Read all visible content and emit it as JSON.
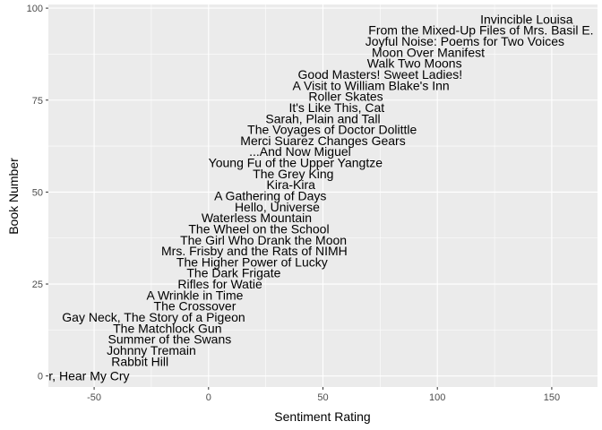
{
  "chart_data": {
    "type": "scatter",
    "xlabel": "Sentiment Rating",
    "ylabel": "Book Number",
    "xlim": [
      -70,
      170
    ],
    "ylim": [
      -3,
      101
    ],
    "x_ticks": [
      -50,
      0,
      50,
      100,
      150
    ],
    "x_tick_labels": [
      "-50",
      "0",
      "50",
      "100",
      "150"
    ],
    "y_ticks": [
      0,
      25,
      50,
      75,
      100
    ],
    "y_tick_labels": [
      "0",
      "25",
      "50",
      "75",
      "100"
    ],
    "grid": true,
    "colors": {
      "panel": "#ebebeb",
      "grid_major": "#ffffff",
      "label": "#000000",
      "tick": "#4d4d4d"
    },
    "points": [
      {
        "label": "Roll of Thunder, Hear My Cry",
        "x": -70,
        "y": 0
      },
      {
        "label": "Rabbit Hill",
        "x": -30,
        "y": 4
      },
      {
        "label": "Johnny Tremain",
        "x": -25,
        "y": 7
      },
      {
        "label": "Summer of the Swans",
        "x": -17,
        "y": 10
      },
      {
        "label": "The Matchlock Gun",
        "x": -18,
        "y": 13
      },
      {
        "label": "Gay Neck, The Story of a Pigeon",
        "x": -24,
        "y": 16
      },
      {
        "label": "The Crossover",
        "x": -6,
        "y": 19
      },
      {
        "label": "A Wrinkle in Time",
        "x": -6,
        "y": 22
      },
      {
        "label": "Rifles for Watie",
        "x": 5,
        "y": 25
      },
      {
        "label": "The Dark Frigate",
        "x": 11,
        "y": 28
      },
      {
        "label": "The Higher Power of Lucky",
        "x": 19,
        "y": 31
      },
      {
        "label": "Mrs. Frisby and the Rats of NIMH",
        "x": 20,
        "y": 34
      },
      {
        "label": "The Girl Who Drank the Moon",
        "x": 24,
        "y": 37
      },
      {
        "label": "The Wheel on the School",
        "x": 22,
        "y": 40
      },
      {
        "label": "Waterless Mountain",
        "x": 21,
        "y": 43
      },
      {
        "label": "Hello, Universe",
        "x": 30,
        "y": 46
      },
      {
        "label": "A Gathering of Days",
        "x": 27,
        "y": 49
      },
      {
        "label": "Kira-Kira",
        "x": 36,
        "y": 52
      },
      {
        "label": "The Grey King",
        "x": 37,
        "y": 55
      },
      {
        "label": "Young Fu of the Upper Yangtze",
        "x": 38,
        "y": 58
      },
      {
        "label": "...And Now Miguel",
        "x": 40,
        "y": 61
      },
      {
        "label": "Merci Suarez Changes Gears",
        "x": 50,
        "y": 64
      },
      {
        "label": "The Voyages of Doctor Dolittle",
        "x": 54,
        "y": 67
      },
      {
        "label": "Sarah, Plain and Tall",
        "x": 50,
        "y": 70
      },
      {
        "label": "It's Like This, Cat",
        "x": 56,
        "y": 73
      },
      {
        "label": "Roller Skates",
        "x": 60,
        "y": 76
      },
      {
        "label": "A Visit to William Blake's Inn",
        "x": 71,
        "y": 79
      },
      {
        "label": "Good Masters! Sweet Ladies!",
        "x": 75,
        "y": 82
      },
      {
        "label": "Walk Two Moons",
        "x": 90,
        "y": 85
      },
      {
        "label": "Moon Over Manifest",
        "x": 96,
        "y": 88
      },
      {
        "label": "Joyful Noise: Poems for Two Voices",
        "x": 112,
        "y": 91
      },
      {
        "label": "From the Mixed-Up Files of Mrs. Basil E. Frankweiler",
        "x": 134,
        "y": 94
      },
      {
        "label": "Invincible Louisa",
        "x": 139,
        "y": 97
      }
    ]
  }
}
